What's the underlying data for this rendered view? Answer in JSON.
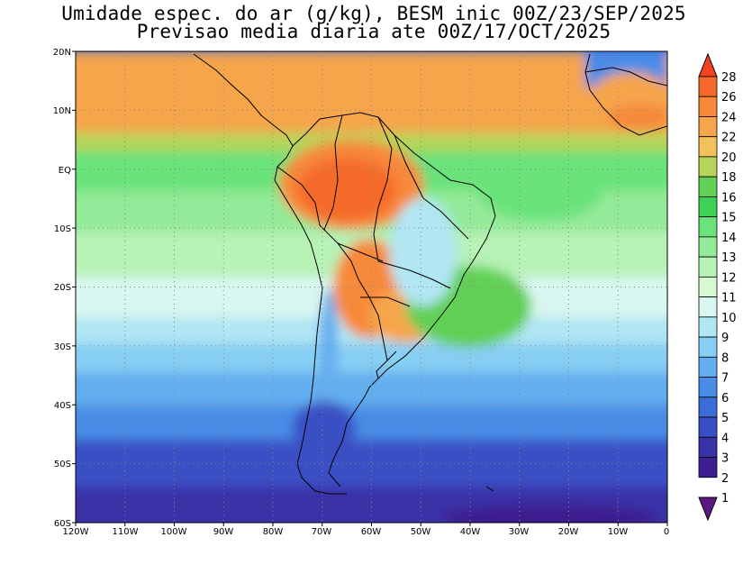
{
  "title": {
    "line1": "Umidade espec. do ar (g/kg), BESM inic 00Z/23/SEP/2025",
    "line2": "Previsao media diaria ate 00Z/17/OCT/2025"
  },
  "axes": {
    "lon_labels": [
      "120W",
      "110W",
      "100W",
      "90W",
      "80W",
      "70W",
      "60W",
      "50W",
      "40W",
      "30W",
      "20W",
      "10W",
      "0"
    ],
    "lat_labels": [
      "20N",
      "10N",
      "EQ",
      "10S",
      "20S",
      "30S",
      "40S",
      "50S",
      "60S"
    ]
  },
  "colorbar": {
    "labels": [
      "28",
      "26",
      "24",
      "22",
      "20",
      "18",
      "16",
      "15",
      "14",
      "13",
      "12",
      "11",
      "10",
      "9",
      "8",
      "7",
      "6",
      "5",
      "4",
      "3",
      "2",
      "1"
    ],
    "colors": [
      "#f3421f",
      "#f56a2c",
      "#f7893a",
      "#f6a54c",
      "#f3c15c",
      "#b6d45a",
      "#62d055",
      "#3fd155",
      "#6be27a",
      "#93ea98",
      "#b7f2b6",
      "#d7f8d0",
      "#d9f6f0",
      "#b1e6f3",
      "#87cef3",
      "#63aeef",
      "#4a8ce6",
      "#3c6cd8",
      "#3a4fc4",
      "#3a33a8",
      "#3d1e8e",
      "#5a1880"
    ]
  },
  "chart_data": {
    "type": "heatmap",
    "variable": "Umidade espec. do ar",
    "units": "g/kg",
    "lon_range": [
      -120,
      0
    ],
    "lat_range": [
      -60,
      20
    ],
    "scale_levels": [
      1,
      2,
      3,
      4,
      5,
      6,
      7,
      8,
      9,
      10,
      11,
      12,
      13,
      14,
      15,
      16,
      18,
      20,
      22,
      24,
      26,
      28
    ],
    "grid": true
  }
}
